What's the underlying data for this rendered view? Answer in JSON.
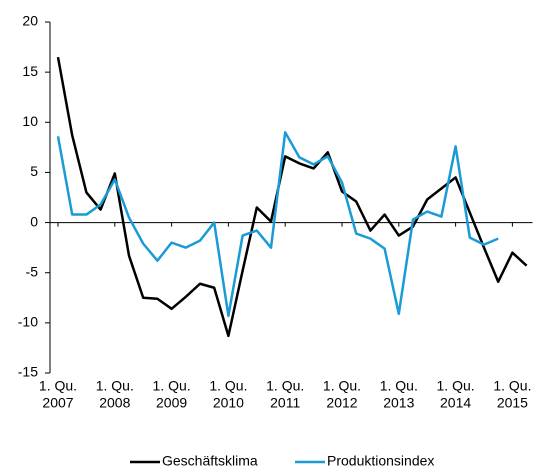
{
  "chart_data": {
    "type": "line",
    "categories": [
      [
        "1. Qu.",
        "2007"
      ],
      null,
      null,
      null,
      [
        "1. Qu.",
        "2008"
      ],
      null,
      null,
      null,
      [
        "1. Qu.",
        "2009"
      ],
      null,
      null,
      null,
      [
        "1. Qu.",
        "2010"
      ],
      null,
      null,
      null,
      [
        "1. Qu.",
        "2011"
      ],
      null,
      null,
      null,
      [
        "1. Qu.",
        "2012"
      ],
      null,
      null,
      null,
      [
        "1. Qu.",
        "2013"
      ],
      null,
      null,
      null,
      [
        "1. Qu.",
        "2014"
      ],
      null,
      null,
      null,
      [
        "1. Qu.",
        "2015"
      ],
      null
    ],
    "series": [
      {
        "name": "Geschäftsklima",
        "color": "#000000",
        "values": [
          16.5,
          8.7,
          3.0,
          1.3,
          4.9,
          -3.3,
          -7.5,
          -7.6,
          -8.6,
          -7.4,
          -6.1,
          -6.5,
          -11.3,
          -4.8,
          1.5,
          0.1,
          6.6,
          5.9,
          5.4,
          7.0,
          3.1,
          2.1,
          -0.8,
          0.8,
          -1.3,
          -0.4,
          2.3,
          3.4,
          4.5,
          1.0,
          -2.5,
          -5.9,
          -3.0,
          -4.3
        ]
      },
      {
        "name": "Produktionsindex",
        "color": "#1a9ad6",
        "values": [
          8.6,
          0.8,
          0.8,
          1.8,
          4.3,
          0.5,
          -2.1,
          -3.8,
          -2.0,
          -2.5,
          -1.8,
          0.0,
          -9.3,
          -1.3,
          -0.8,
          -2.5,
          9.0,
          6.5,
          5.8,
          6.6,
          4.0,
          -1.1,
          -1.6,
          -2.6,
          -9.1,
          0.3,
          1.1,
          0.6,
          7.6,
          -1.5,
          -2.2,
          -1.6,
          null,
          null
        ]
      }
    ],
    "ylim": [
      -15,
      20
    ],
    "yticks": [
      -15,
      -10,
      -5,
      0,
      5,
      10,
      15,
      20
    ],
    "legend": "bottom"
  }
}
